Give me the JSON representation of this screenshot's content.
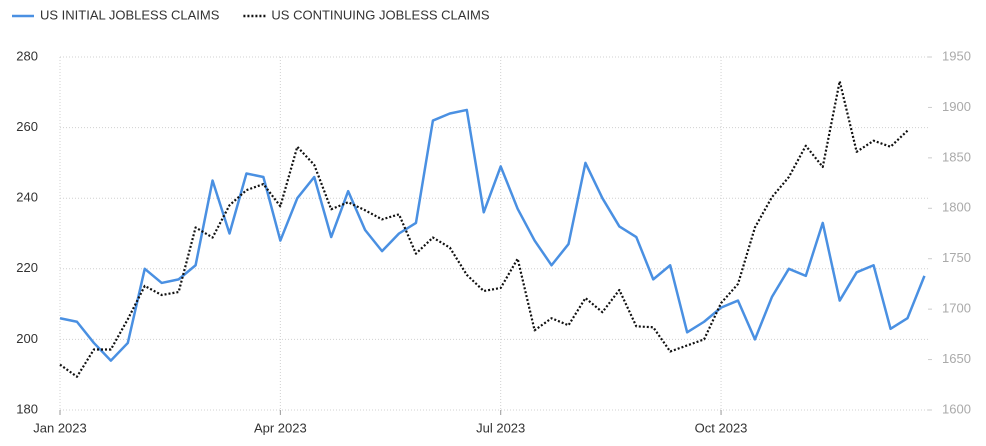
{
  "chart_data": {
    "type": "line",
    "categories": [
      "Jan 2023",
      null,
      null,
      null,
      null,
      null,
      null,
      null,
      null,
      null,
      null,
      null,
      null,
      "Apr 2023",
      null,
      null,
      null,
      null,
      null,
      null,
      null,
      null,
      null,
      null,
      null,
      null,
      "Jul 2023",
      null,
      null,
      null,
      null,
      null,
      null,
      null,
      null,
      null,
      null,
      null,
      null,
      "Oct 2023",
      null,
      null,
      null,
      null,
      null,
      null,
      null,
      null,
      null,
      null,
      null,
      null
    ],
    "series": [
      {
        "name": "US INITIAL JOBLESS CLAIMS",
        "color": "#4a90e2",
        "dash": "solid",
        "axis": "y",
        "values": [
          206,
          205,
          199,
          194,
          199,
          220,
          216,
          217,
          221,
          245,
          230,
          247,
          246,
          228,
          240,
          246,
          229,
          242,
          231,
          225,
          230,
          233,
          262,
          264,
          265,
          236,
          249,
          237,
          228,
          221,
          227,
          250,
          240,
          232,
          229,
          217,
          221,
          202,
          205,
          209,
          211,
          200,
          212,
          220,
          218,
          233,
          211,
          219,
          221,
          203,
          206,
          218
        ]
      },
      {
        "name": "US CONTINUING JOBLESS CLAIMS",
        "color": "#111111",
        "dash": "dotted",
        "axis": "y2",
        "values": [
          1645,
          1633,
          1660,
          1660,
          1690,
          1723,
          1714,
          1717,
          1781,
          1771,
          1803,
          1818,
          1824,
          1802,
          1861,
          1843,
          1799,
          1806,
          1798,
          1789,
          1794,
          1755,
          1771,
          1761,
          1734,
          1718,
          1721,
          1750,
          1679,
          1691,
          1684,
          1711,
          1697,
          1719,
          1683,
          1682,
          1658,
          1664,
          1670,
          1706,
          1725,
          1781,
          1811,
          1831,
          1862,
          1841,
          1926,
          1856,
          1867,
          1861,
          1877,
          null
        ]
      }
    ],
    "ylim": [
      180,
      280
    ],
    "yticks": [
      180,
      200,
      220,
      240,
      260,
      280
    ],
    "y2lim": [
      1600,
      1950
    ],
    "y2ticks": [
      1600,
      1650,
      1700,
      1750,
      1800,
      1850,
      1900,
      1950
    ],
    "grid": true,
    "legend": "top-left"
  }
}
